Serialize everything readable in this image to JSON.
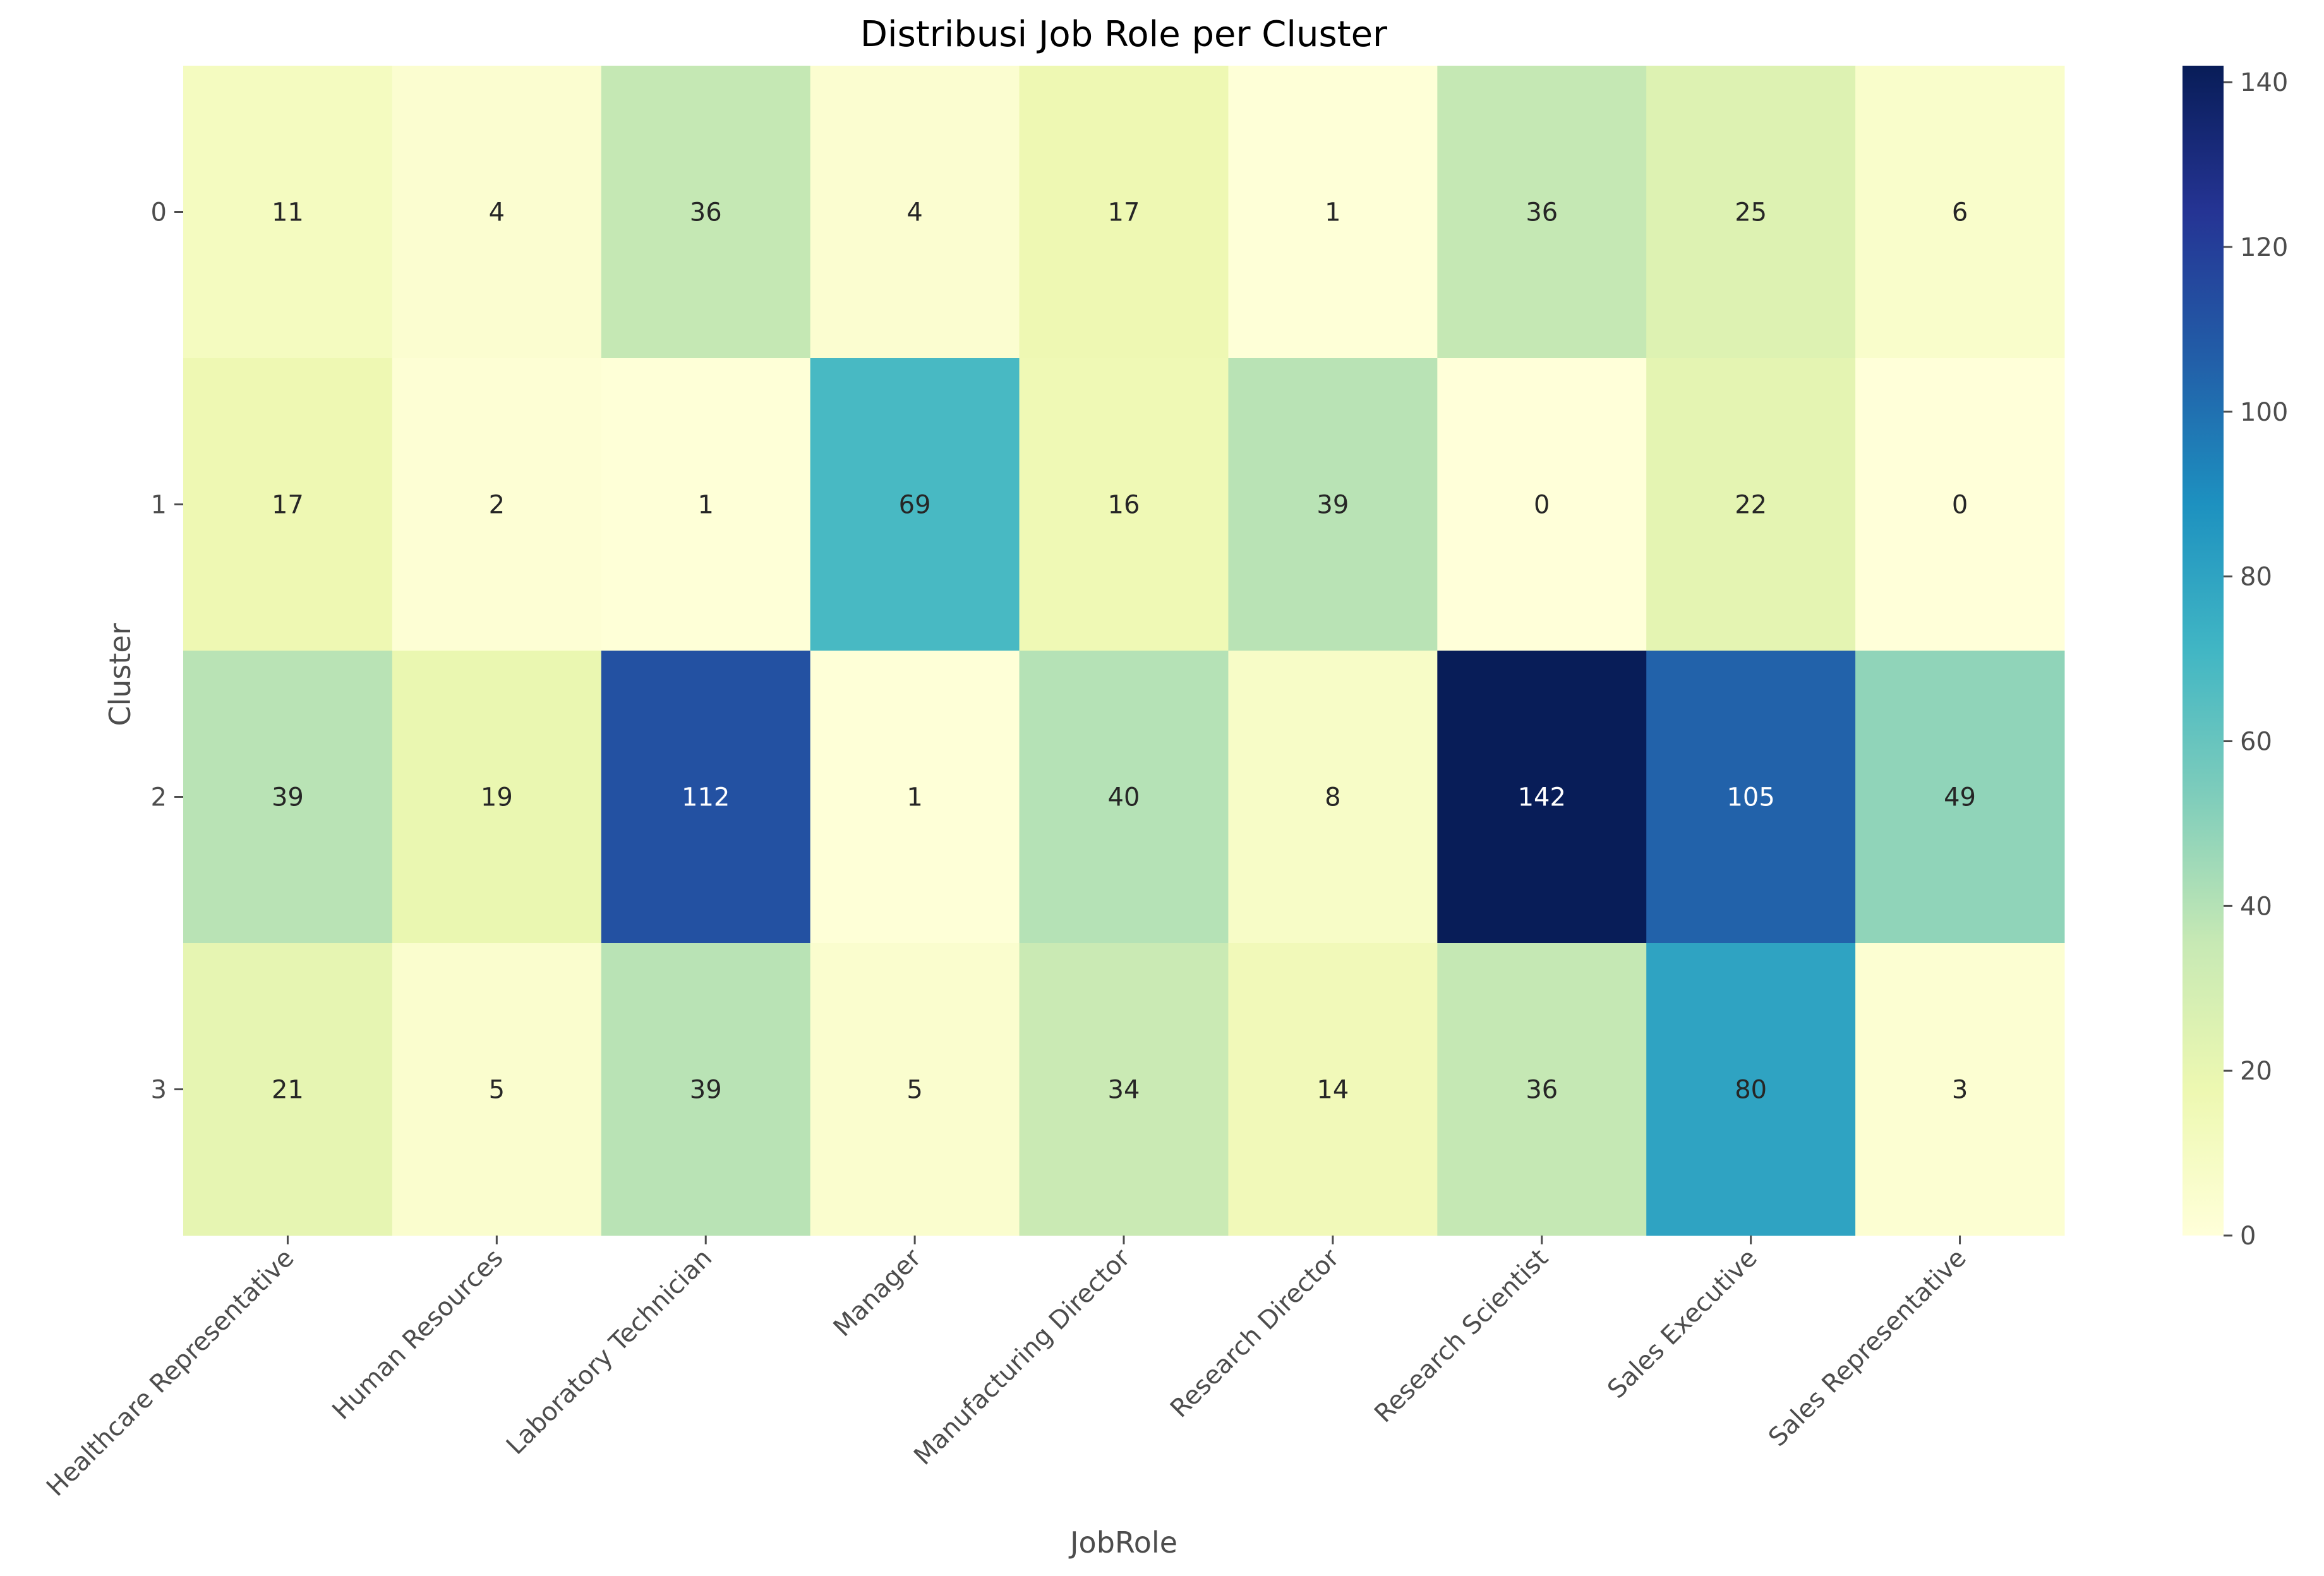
{
  "chart_data": {
    "type": "heatmap",
    "title": "Distribusi Job Role per Cluster",
    "xlabel": "JobRole",
    "ylabel": "Cluster",
    "x_categories": [
      "Healthcare Representative",
      "Human Resources",
      "Laboratory Technician",
      "Manager",
      "Manufacturing Director",
      "Research Director",
      "Research Scientist",
      "Sales Executive",
      "Sales Representative"
    ],
    "y_categories": [
      "0",
      "1",
      "2",
      "3"
    ],
    "values": [
      [
        11,
        4,
        36,
        4,
        17,
        1,
        36,
        25,
        6
      ],
      [
        17,
        2,
        1,
        69,
        16,
        39,
        0,
        22,
        0
      ],
      [
        39,
        19,
        112,
        1,
        40,
        8,
        142,
        105,
        49
      ],
      [
        21,
        5,
        39,
        5,
        34,
        14,
        36,
        80,
        3
      ]
    ],
    "colormap": "YlGnBu",
    "colorbar": {
      "range": [
        0,
        142
      ],
      "ticks": [
        0,
        20,
        40,
        60,
        80,
        100,
        120,
        140
      ]
    },
    "grid": false
  }
}
